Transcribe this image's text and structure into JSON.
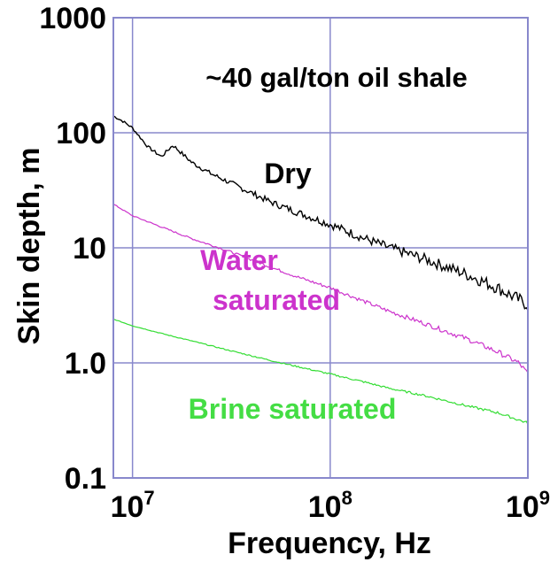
{
  "chart_data": {
    "type": "line",
    "title": "~40 gal/ton oil shale",
    "xlabel": "Frequency, Hz",
    "ylabel": "Skin depth, m",
    "xscale": "log",
    "yscale": "log",
    "xlim": [
      8000000,
      1000000000
    ],
    "ylim": [
      0.1,
      1000
    ],
    "x_ticks": [
      {
        "value": 10000000,
        "base": "10",
        "exp": "7"
      },
      {
        "value": 100000000,
        "base": "10",
        "exp": "8"
      },
      {
        "value": 1000000000,
        "base": "10",
        "exp": "9"
      }
    ],
    "y_ticks": [
      {
        "value": 0.1,
        "label": "0.1"
      },
      {
        "value": 1,
        "label": "1.0"
      },
      {
        "value": 10,
        "label": "10"
      },
      {
        "value": 100,
        "label": "100"
      },
      {
        "value": 1000,
        "label": "1000"
      }
    ],
    "grid": true,
    "series": [
      {
        "name": "Dry",
        "color": "#000000",
        "x": [
          8000000,
          9000000,
          10000000,
          11000000,
          12000000,
          14000000,
          16000000,
          20000000,
          25000000,
          30000000,
          40000000,
          50000000,
          70000000,
          100000000,
          150000000,
          200000000,
          300000000,
          500000000,
          700000000,
          1000000000
        ],
        "y": [
          140,
          125,
          110,
          90,
          75,
          62,
          78,
          55,
          44,
          38,
          30,
          25,
          20,
          16,
          12,
          10,
          8,
          5.8,
          4.5,
          3.2
        ]
      },
      {
        "name": "Water saturated",
        "color": "#cc33cc",
        "x": [
          8000000,
          10000000,
          15000000,
          20000000,
          30000000,
          50000000,
          70000000,
          100000000,
          150000000,
          200000000,
          300000000,
          500000000,
          700000000,
          900000000,
          1000000000
        ],
        "y": [
          24,
          19,
          14.5,
          12,
          9.5,
          6.8,
          5.5,
          4.5,
          3.4,
          2.8,
          2.2,
          1.6,
          1.25,
          1.0,
          0.8
        ]
      },
      {
        "name": "Brine saturated",
        "color": "#33dd33",
        "x": [
          8000000,
          10000000,
          15000000,
          20000000,
          30000000,
          50000000,
          70000000,
          100000000,
          150000000,
          200000000,
          300000000,
          500000000,
          700000000,
          1000000000
        ],
        "y": [
          2.4,
          2.1,
          1.75,
          1.55,
          1.3,
          1.05,
          0.92,
          0.8,
          0.68,
          0.6,
          0.52,
          0.42,
          0.37,
          0.3
        ]
      }
    ],
    "annotations": {
      "dry": "Dry",
      "water_line1": "Water",
      "water_line2": "saturated",
      "brine": "Brine saturated"
    }
  }
}
